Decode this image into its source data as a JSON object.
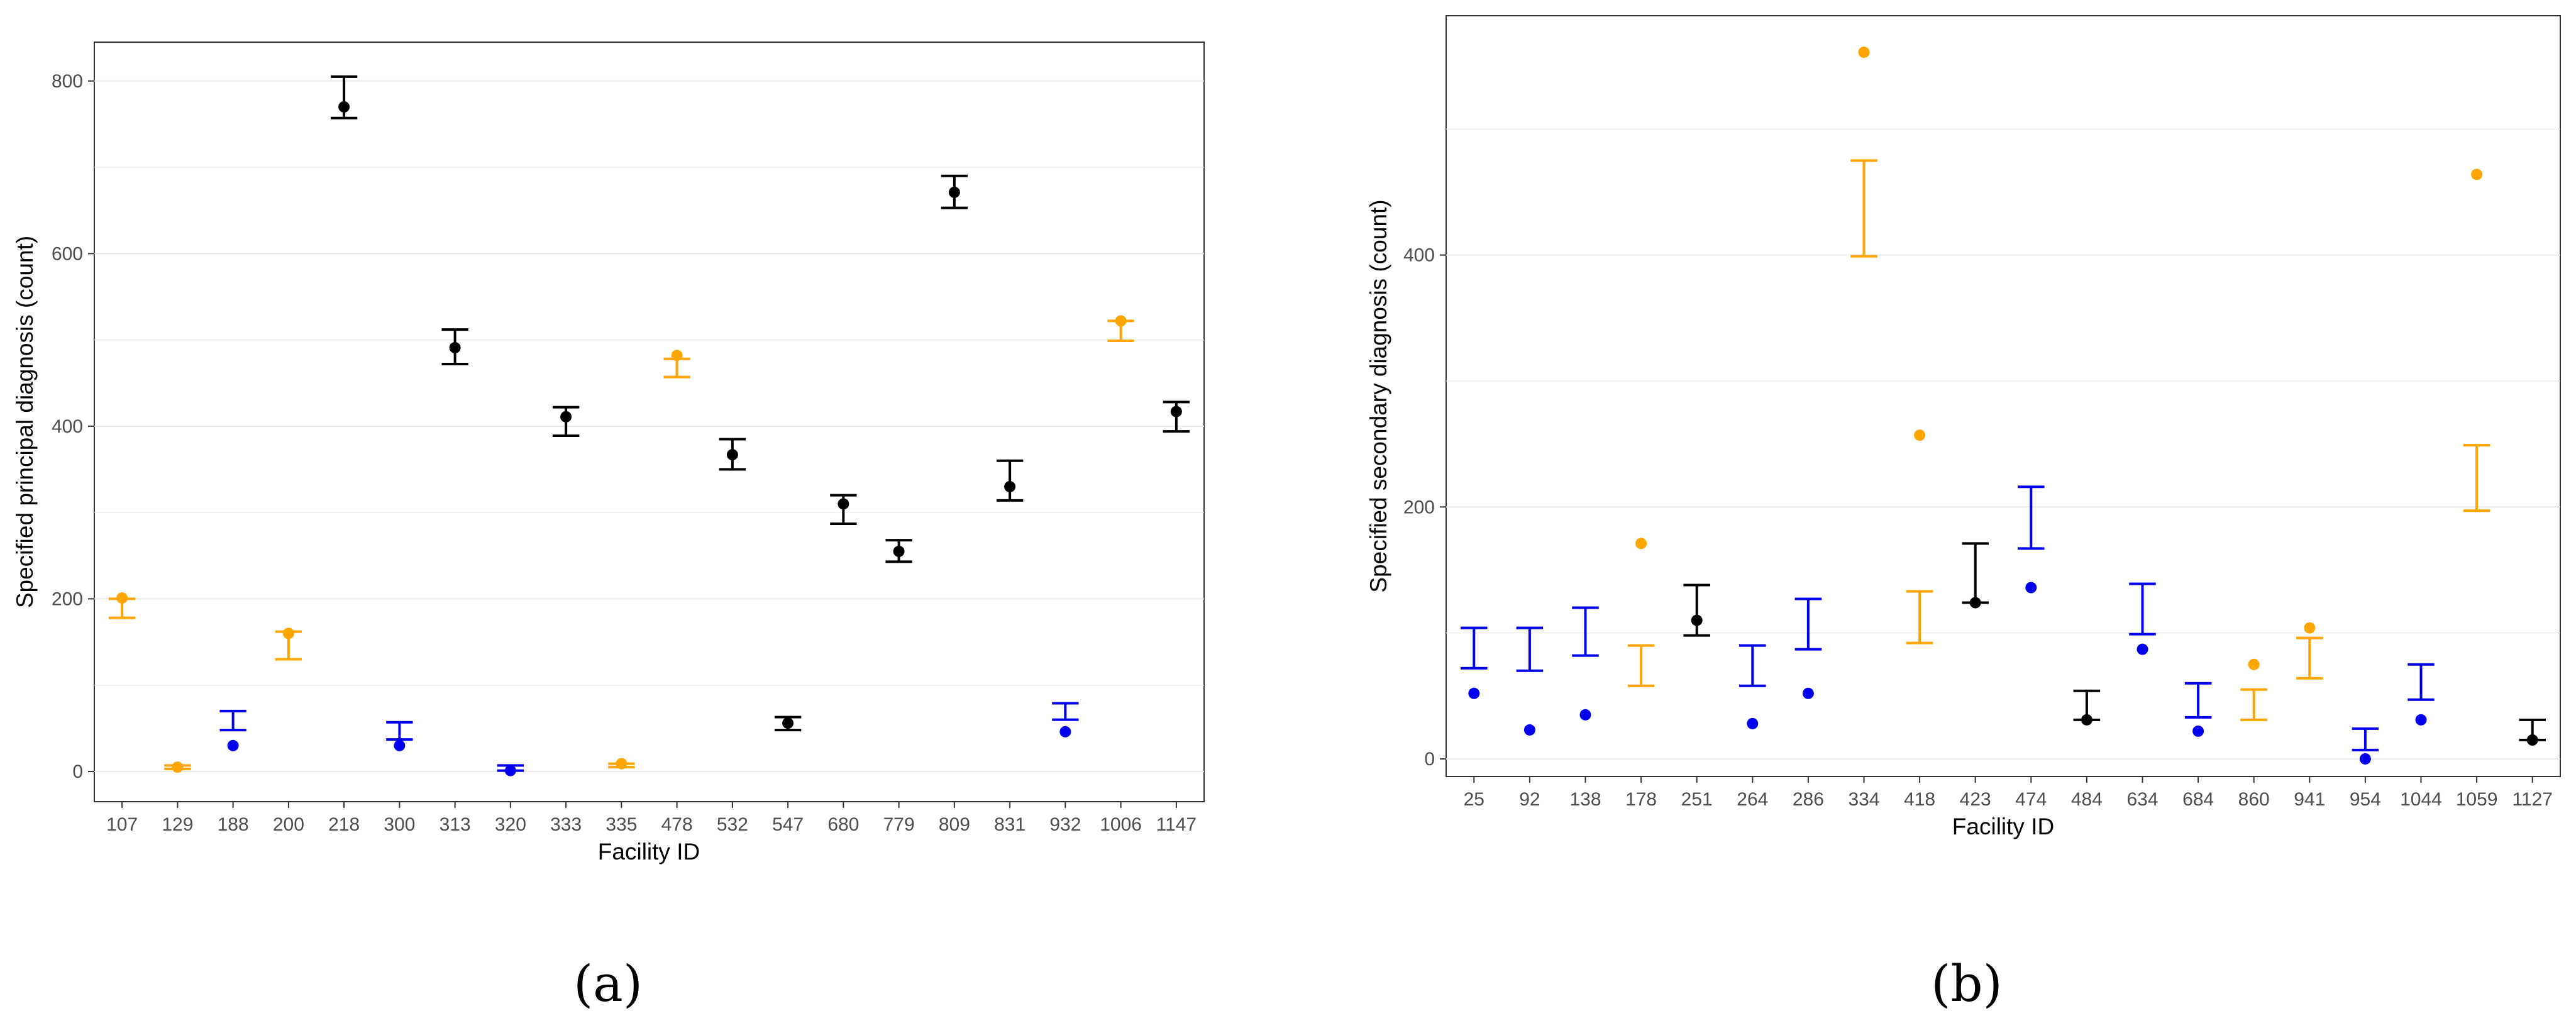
{
  "colors": {
    "black": "#000000",
    "blue": "#0000ee",
    "orange": "#ffa500",
    "grid": "#ebebeb",
    "axis": "#333333"
  },
  "chart_data": [
    {
      "type": "scatter",
      "panel_label": "(a)",
      "xlabel": "Facility ID",
      "ylabel": "Specified principal diagnosis (count)",
      "ylim": [
        -35,
        845
      ],
      "yticks": [
        0,
        200,
        400,
        600,
        800
      ],
      "categories": [
        "107",
        "129",
        "188",
        "200",
        "218",
        "300",
        "313",
        "320",
        "333",
        "335",
        "478",
        "532",
        "547",
        "680",
        "779",
        "809",
        "831",
        "932",
        "1006",
        "1147"
      ],
      "points": [
        {
          "id": "107",
          "value": 201,
          "lower": 178,
          "upper": 200,
          "color": "orange"
        },
        {
          "id": "129",
          "value": 5,
          "lower": 3,
          "upper": 7,
          "color": "orange"
        },
        {
          "id": "188",
          "value": 30,
          "lower": 48,
          "upper": 70,
          "color": "blue"
        },
        {
          "id": "200",
          "value": 160,
          "lower": 130,
          "upper": 162,
          "color": "orange"
        },
        {
          "id": "218",
          "value": 770,
          "lower": 757,
          "upper": 805,
          "color": "black"
        },
        {
          "id": "300",
          "value": 30,
          "lower": 37,
          "upper": 57,
          "color": "blue"
        },
        {
          "id": "313",
          "value": 491,
          "lower": 472,
          "upper": 512,
          "color": "black"
        },
        {
          "id": "320",
          "value": 1,
          "lower": 1,
          "upper": 7,
          "color": "blue"
        },
        {
          "id": "333",
          "value": 411,
          "lower": 389,
          "upper": 422,
          "color": "black"
        },
        {
          "id": "335",
          "value": 9,
          "lower": 5,
          "upper": 9,
          "color": "orange"
        },
        {
          "id": "478",
          "value": 482,
          "lower": 457,
          "upper": 478,
          "color": "orange"
        },
        {
          "id": "532",
          "value": 367,
          "lower": 350,
          "upper": 385,
          "color": "black"
        },
        {
          "id": "547",
          "value": 56,
          "lower": 48,
          "upper": 63,
          "color": "black"
        },
        {
          "id": "680",
          "value": 310,
          "lower": 287,
          "upper": 320,
          "color": "black"
        },
        {
          "id": "779",
          "value": 255,
          "lower": 243,
          "upper": 268,
          "color": "black"
        },
        {
          "id": "809",
          "value": 671,
          "lower": 653,
          "upper": 690,
          "color": "black"
        },
        {
          "id": "831",
          "value": 330,
          "lower": 314,
          "upper": 360,
          "color": "black"
        },
        {
          "id": "932",
          "value": 46,
          "lower": 60,
          "upper": 79,
          "color": "blue"
        },
        {
          "id": "1006",
          "value": 522,
          "lower": 499,
          "upper": 522,
          "color": "orange"
        },
        {
          "id": "1147",
          "value": 417,
          "lower": 394,
          "upper": 428,
          "color": "black"
        }
      ]
    },
    {
      "type": "scatter",
      "panel_label": "(b)",
      "xlabel": "Facility ID",
      "ylabel": "Specified secondary diagnosis (count)",
      "ylim": [
        -14,
        590
      ],
      "yticks": [
        0,
        200,
        400
      ],
      "categories": [
        "25",
        "92",
        "138",
        "178",
        "251",
        "264",
        "286",
        "334",
        "418",
        "423",
        "474",
        "484",
        "634",
        "684",
        "860",
        "941",
        "954",
        "1044",
        "1059",
        "1127"
      ],
      "points": [
        {
          "id": "25",
          "value": 52,
          "lower": 72,
          "upper": 104,
          "color": "blue"
        },
        {
          "id": "92",
          "value": 23,
          "lower": 70,
          "upper": 104,
          "color": "blue"
        },
        {
          "id": "138",
          "value": 35,
          "lower": 82,
          "upper": 120,
          "color": "blue"
        },
        {
          "id": "178",
          "value": 171,
          "lower": 58,
          "upper": 90,
          "color": "orange"
        },
        {
          "id": "251",
          "value": 110,
          "lower": 98,
          "upper": 138,
          "color": "black"
        },
        {
          "id": "264",
          "value": 28,
          "lower": 58,
          "upper": 90,
          "color": "blue"
        },
        {
          "id": "286",
          "value": 52,
          "lower": 87,
          "upper": 127,
          "color": "blue"
        },
        {
          "id": "334",
          "value": 561,
          "lower": 399,
          "upper": 475,
          "color": "orange"
        },
        {
          "id": "418",
          "value": 257,
          "lower": 92,
          "upper": 133,
          "color": "orange"
        },
        {
          "id": "423",
          "value": 124,
          "lower": 124,
          "upper": 171,
          "color": "black"
        },
        {
          "id": "474",
          "value": 136,
          "lower": 167,
          "upper": 216,
          "color": "blue"
        },
        {
          "id": "484",
          "value": 31,
          "lower": 31,
          "upper": 54,
          "color": "black"
        },
        {
          "id": "634",
          "value": 87,
          "lower": 99,
          "upper": 139,
          "color": "blue"
        },
        {
          "id": "684",
          "value": 22,
          "lower": 33,
          "upper": 60,
          "color": "blue"
        },
        {
          "id": "860",
          "value": 75,
          "lower": 31,
          "upper": 55,
          "color": "orange"
        },
        {
          "id": "941",
          "value": 104,
          "lower": 64,
          "upper": 96,
          "color": "orange"
        },
        {
          "id": "954",
          "value": 0,
          "lower": 7,
          "upper": 24,
          "color": "blue"
        },
        {
          "id": "1044",
          "value": 31,
          "lower": 47,
          "upper": 75,
          "color": "blue"
        },
        {
          "id": "1059",
          "value": 464,
          "lower": 197,
          "upper": 249,
          "color": "orange"
        },
        {
          "id": "1127",
          "value": 15,
          "lower": 15,
          "upper": 31,
          "color": "black"
        }
      ]
    }
  ]
}
